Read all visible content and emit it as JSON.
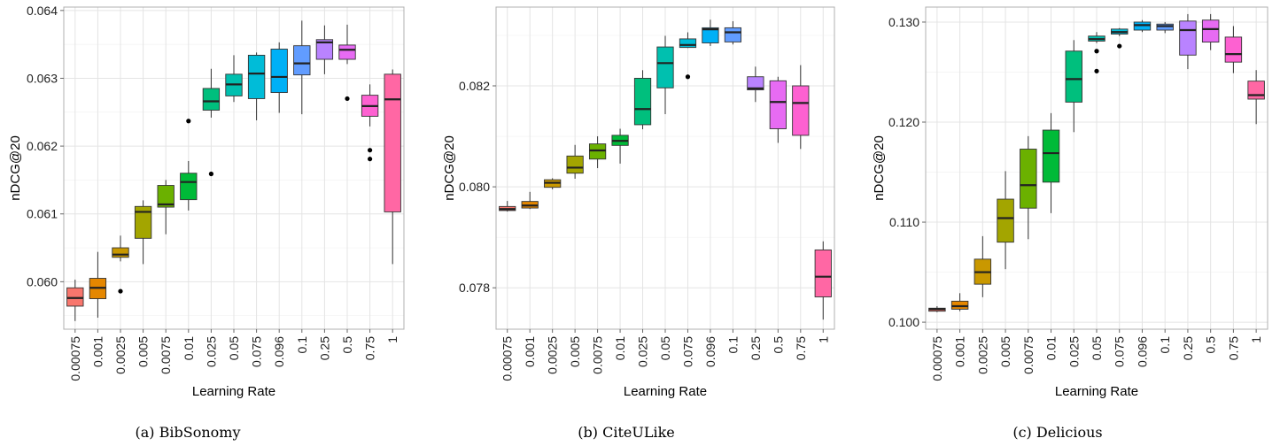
{
  "chart_data": [
    {
      "type": "box",
      "caption": "(a) BibSonomy",
      "xlabel": "Learning Rate",
      "ylabel": "nDCG@20",
      "categories": [
        "0.00075",
        "0.001",
        "0.0025",
        "0.005",
        "0.0075",
        "0.01",
        "0.025",
        "0.05",
        "0.075",
        "0.096",
        "0.1",
        "0.25",
        "0.5",
        "0.75",
        "1"
      ],
      "ylim": [
        0.0593,
        0.06405
      ],
      "yticks": [
        0.06,
        0.061,
        0.062,
        0.063,
        0.064
      ],
      "ytick_labels": [
        "0.060",
        "0.061",
        "0.062",
        "0.063",
        "0.064"
      ],
      "grid": true,
      "boxes": [
        {
          "min": 0.05942,
          "q1": 0.05964,
          "median": 0.05976,
          "q3": 0.05991,
          "max": 0.06003,
          "outliers": []
        },
        {
          "min": 0.05947,
          "q1": 0.05975,
          "median": 0.05991,
          "q3": 0.06005,
          "max": 0.06044,
          "outliers": []
        },
        {
          "min": 0.0603,
          "q1": 0.06036,
          "median": 0.0604,
          "q3": 0.0605,
          "max": 0.06068,
          "outliers": [
            0.05986
          ]
        },
        {
          "min": 0.06026,
          "q1": 0.06064,
          "median": 0.06103,
          "q3": 0.06111,
          "max": 0.0612,
          "outliers": []
        },
        {
          "min": 0.0607,
          "q1": 0.0611,
          "median": 0.06114,
          "q3": 0.06142,
          "max": 0.0615,
          "outliers": []
        },
        {
          "min": 0.06105,
          "q1": 0.06121,
          "median": 0.06147,
          "q3": 0.0616,
          "max": 0.06178,
          "outliers": [
            0.06237
          ]
        },
        {
          "min": 0.06242,
          "q1": 0.06253,
          "median": 0.06266,
          "q3": 0.06285,
          "max": 0.06314,
          "outliers": [
            0.06159
          ]
        },
        {
          "min": 0.06265,
          "q1": 0.06274,
          "median": 0.06291,
          "q3": 0.06306,
          "max": 0.06334,
          "outliers": []
        },
        {
          "min": 0.06238,
          "q1": 0.0627,
          "median": 0.06307,
          "q3": 0.06334,
          "max": 0.06338,
          "outliers": []
        },
        {
          "min": 0.06249,
          "q1": 0.06279,
          "median": 0.06302,
          "q3": 0.06343,
          "max": 0.06353,
          "outliers": []
        },
        {
          "min": 0.06247,
          "q1": 0.06305,
          "median": 0.06322,
          "q3": 0.06348,
          "max": 0.06385,
          "outliers": []
        },
        {
          "min": 0.06306,
          "q1": 0.06328,
          "median": 0.06353,
          "q3": 0.06357,
          "max": 0.06378,
          "outliers": []
        },
        {
          "min": 0.06321,
          "q1": 0.06328,
          "median": 0.06342,
          "q3": 0.06349,
          "max": 0.06379,
          "outliers": [
            0.0627
          ]
        },
        {
          "min": 0.06229,
          "q1": 0.06244,
          "median": 0.06259,
          "q3": 0.06275,
          "max": 0.06291,
          "outliers": [
            0.06194,
            0.06181
          ]
        },
        {
          "min": 0.06026,
          "q1": 0.06103,
          "median": 0.06269,
          "q3": 0.06306,
          "max": 0.06313,
          "outliers": []
        }
      ]
    },
    {
      "type": "box",
      "caption": "(b) CiteULike",
      "xlabel": "Learning Rate",
      "ylabel": "nDCG@20",
      "categories": [
        "0.00075",
        "0.001",
        "0.0025",
        "0.005",
        "0.0075",
        "0.01",
        "0.025",
        "0.05",
        "0.075",
        "0.096",
        "0.1",
        "0.25",
        "0.5",
        "0.75",
        "1"
      ],
      "ylim": [
        0.07718,
        0.08356
      ],
      "yticks": [
        0.078,
        0.08,
        0.082
      ],
      "ytick_labels": [
        "0.078",
        "0.080",
        "0.082"
      ],
      "grid": true,
      "boxes": [
        {
          "min": 0.07951,
          "q1": 0.07953,
          "median": 0.07956,
          "q3": 0.07961,
          "max": 0.07972,
          "outliers": []
        },
        {
          "min": 0.07956,
          "q1": 0.07958,
          "median": 0.07963,
          "q3": 0.07971,
          "max": 0.0799,
          "outliers": []
        },
        {
          "min": 0.07995,
          "q1": 0.07999,
          "median": 0.08008,
          "q3": 0.08014,
          "max": 0.08017,
          "outliers": []
        },
        {
          "min": 0.08016,
          "q1": 0.08027,
          "median": 0.08038,
          "q3": 0.08061,
          "max": 0.08083,
          "outliers": []
        },
        {
          "min": 0.08037,
          "q1": 0.08055,
          "median": 0.08072,
          "q3": 0.08085,
          "max": 0.081,
          "outliers": []
        },
        {
          "min": 0.08046,
          "q1": 0.08082,
          "median": 0.08091,
          "q3": 0.08102,
          "max": 0.08115,
          "outliers": []
        },
        {
          "min": 0.08114,
          "q1": 0.08123,
          "median": 0.08154,
          "q3": 0.08215,
          "max": 0.08231,
          "outliers": []
        },
        {
          "min": 0.08144,
          "q1": 0.08196,
          "median": 0.08245,
          "q3": 0.08277,
          "max": 0.08299,
          "outliers": []
        },
        {
          "min": 0.08275,
          "q1": 0.08276,
          "median": 0.08281,
          "q3": 0.08293,
          "max": 0.08306,
          "outliers": [
            0.08218
          ]
        },
        {
          "min": 0.08279,
          "q1": 0.08285,
          "median": 0.08312,
          "q3": 0.08315,
          "max": 0.08331,
          "outliers": []
        },
        {
          "min": 0.08282,
          "q1": 0.08287,
          "median": 0.08306,
          "q3": 0.08315,
          "max": 0.08328,
          "outliers": []
        },
        {
          "min": 0.08168,
          "q1": 0.08192,
          "median": 0.08195,
          "q3": 0.08218,
          "max": 0.08238,
          "outliers": []
        },
        {
          "min": 0.08087,
          "q1": 0.08115,
          "median": 0.08168,
          "q3": 0.0821,
          "max": 0.08218,
          "outliers": []
        },
        {
          "min": 0.08075,
          "q1": 0.08102,
          "median": 0.08166,
          "q3": 0.082,
          "max": 0.08241,
          "outliers": []
        },
        {
          "min": 0.07737,
          "q1": 0.07782,
          "median": 0.07822,
          "q3": 0.07875,
          "max": 0.07892,
          "outliers": []
        }
      ]
    },
    {
      "type": "box",
      "caption": "(c) Delicious",
      "xlabel": "Learning Rate",
      "ylabel": "nDCG@20",
      "categories": [
        "0.00075",
        "0.001",
        "0.0025",
        "0.005",
        "0.0075",
        "0.01",
        "0.025",
        "0.05",
        "0.075",
        "0.096",
        "0.1",
        "0.25",
        "0.5",
        "0.75",
        "1"
      ],
      "ylim": [
        0.0993,
        0.1315
      ],
      "yticks": [
        0.1,
        0.11,
        0.12,
        0.13
      ],
      "ytick_labels": [
        "0.100",
        "0.110",
        "0.120",
        "0.130"
      ],
      "grid": true,
      "boxes": [
        {
          "min": 0.101,
          "q1": 0.1011,
          "median": 0.1013,
          "q3": 0.1014,
          "max": 0.1016,
          "outliers": []
        },
        {
          "min": 0.1011,
          "q1": 0.1013,
          "median": 0.1016,
          "q3": 0.1021,
          "max": 0.1029,
          "outliers": []
        },
        {
          "min": 0.1025,
          "q1": 0.1038,
          "median": 0.105,
          "q3": 0.1063,
          "max": 0.1086,
          "outliers": []
        },
        {
          "min": 0.1053,
          "q1": 0.108,
          "median": 0.1104,
          "q3": 0.1123,
          "max": 0.1151,
          "outliers": []
        },
        {
          "min": 0.1083,
          "q1": 0.1114,
          "median": 0.1137,
          "q3": 0.1173,
          "max": 0.1186,
          "outliers": []
        },
        {
          "min": 0.1109,
          "q1": 0.114,
          "median": 0.1169,
          "q3": 0.1192,
          "max": 0.1209,
          "outliers": []
        },
        {
          "min": 0.119,
          "q1": 0.122,
          "median": 0.1243,
          "q3": 0.1271,
          "max": 0.1282,
          "outliers": []
        },
        {
          "min": 0.1279,
          "q1": 0.1281,
          "median": 0.1283,
          "q3": 0.1286,
          "max": 0.129,
          "outliers": [
            0.1271,
            0.1251
          ]
        },
        {
          "min": 0.1286,
          "q1": 0.1288,
          "median": 0.129,
          "q3": 0.1293,
          "max": 0.1294,
          "outliers": [
            0.1276
          ]
        },
        {
          "min": 0.129,
          "q1": 0.1292,
          "median": 0.1297,
          "q3": 0.13,
          "max": 0.1302,
          "outliers": []
        },
        {
          "min": 0.1289,
          "q1": 0.1292,
          "median": 0.1296,
          "q3": 0.1298,
          "max": 0.13,
          "outliers": []
        },
        {
          "min": 0.1253,
          "q1": 0.1267,
          "median": 0.1292,
          "q3": 0.1301,
          "max": 0.1308,
          "outliers": []
        },
        {
          "min": 0.1272,
          "q1": 0.128,
          "median": 0.1293,
          "q3": 0.1302,
          "max": 0.1308,
          "outliers": []
        },
        {
          "min": 0.1249,
          "q1": 0.126,
          "median": 0.1268,
          "q3": 0.1285,
          "max": 0.1296,
          "outliers": []
        },
        {
          "min": 0.1198,
          "q1": 0.1223,
          "median": 0.1227,
          "q3": 0.1241,
          "max": 0.1252,
          "outliers": []
        }
      ]
    }
  ],
  "colors": [
    "#F8766D",
    "#E58700",
    "#C99800",
    "#A3A500",
    "#6BB100",
    "#00BA38",
    "#00BF7D",
    "#00C0AF",
    "#00BCD8",
    "#00B0F6",
    "#619CFF",
    "#B983FF",
    "#E76BF3",
    "#FD61D1",
    "#FF67A4"
  ]
}
